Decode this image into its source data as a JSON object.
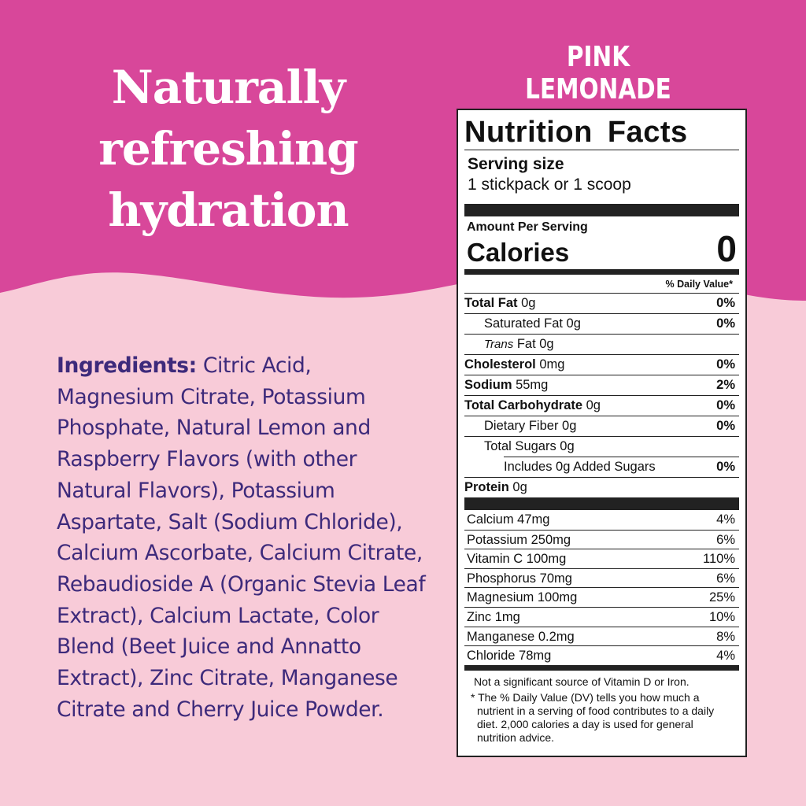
{
  "colors": {
    "magenta": "#d8479a",
    "light_pink": "#f8cbd8",
    "purple_text": "#3d2a7b"
  },
  "headline": [
    "Naturally",
    "refreshing",
    "hydration"
  ],
  "flavor": "PINK LEMONADE",
  "ingredients": {
    "label": "Ingredients:",
    "text": " Citric Acid, Magnesium Citrate, Potassium Phosphate, Natural Lemon and Raspberry Flavors (with other Natural Flavors), Potassium Aspartate, Salt (Sodium Chloride), Calcium Ascorbate, Calcium Citrate, Rebaudioside A (Organic Stevia Leaf Extract), Calcium Lactate, Color Blend (Beet Juice and Annatto Extract), Zinc Citrate, Manganese Citrate and Cherry Juice Powder."
  },
  "nutrition": {
    "title": "Nutrition Facts",
    "serving_label": "Serving size",
    "serving_value": "1 stickpack or 1 scoop",
    "amount_per_serving": "Amount Per Serving",
    "calories_label": "Calories",
    "calories_value": "0",
    "dv_header": "% Daily Value*",
    "rows": [
      {
        "name": "Total Fat",
        "amount": " 0g",
        "dv": "0%"
      },
      {
        "name": "Saturated Fat 0g",
        "dv": "0%"
      },
      {
        "italic": "Trans",
        "name": " Fat 0g",
        "dv": ""
      },
      {
        "name": "Cholesterol",
        "amount": " 0mg",
        "dv": "0%"
      },
      {
        "name": "Sodium",
        "amount": " 55mg",
        "dv": "2%"
      },
      {
        "name": "Total Carbohydrate",
        "amount": " 0g",
        "dv": "0%"
      },
      {
        "name": "Dietary Fiber 0g",
        "dv": "0%"
      },
      {
        "name": "Total Sugars 0g",
        "dv": ""
      },
      {
        "name": "Includes 0g Added Sugars",
        "dv": "0%"
      },
      {
        "name": "Protein",
        "amount": " 0g",
        "dv": ""
      }
    ],
    "minerals": [
      {
        "name": "Calcium 47mg",
        "dv": "4%"
      },
      {
        "name": "Potassium 250mg",
        "dv": "6%"
      },
      {
        "name": "Vitamin C 100mg",
        "dv": "110%"
      },
      {
        "name": "Phosphorus 70mg",
        "dv": "6%"
      },
      {
        "name": "Magnesium 100mg",
        "dv": "25%"
      },
      {
        "name": "Zinc 1mg",
        "dv": "10%"
      },
      {
        "name": "Manganese 0.2mg",
        "dv": "8%"
      },
      {
        "name": "Chloride 78mg",
        "dv": "4%"
      }
    ],
    "footnote_source": "Not a significant source of Vitamin D or Iron.",
    "footnote_dv": "* The % Daily Value (DV) tells you how much a nutrient in a serving of food contributes to a daily diet. 2,000 calories a day is used for general nutrition advice."
  }
}
